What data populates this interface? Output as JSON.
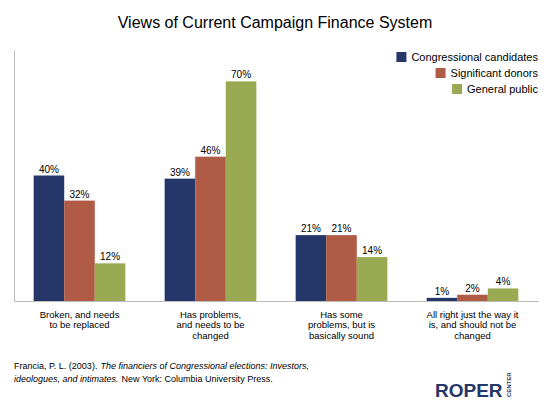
{
  "chart_data": {
    "type": "bar",
    "title": "Views of Current Campaign Finance System",
    "categories": [
      "Broken, and needs\nto be replaced",
      "Has problems,\nand needs to be\nchanged",
      "Has some\nproblems, but is\nbasically sound",
      "All right just the way it\nis, and should not be\nchanged"
    ],
    "series": [
      {
        "name": "Congressional candidates",
        "color": "#253669",
        "values": [
          40,
          39,
          21,
          1
        ],
        "value_labels": [
          "40%",
          "39%",
          "21%",
          "1%"
        ]
      },
      {
        "name": "Significant donors",
        "color": "#b05b45",
        "values": [
          32,
          46,
          21,
          2
        ],
        "value_labels": [
          "32%",
          "46%",
          "21%",
          "2%"
        ]
      },
      {
        "name": "General public",
        "color": "#9aaa52",
        "values": [
          12,
          70,
          14,
          4
        ],
        "value_labels": [
          "12%",
          "70%",
          "14%",
          "4%"
        ]
      }
    ],
    "ylim": [
      0,
      80
    ],
    "data_labels": true,
    "tick_labels": "x",
    "grid": false,
    "legend": "upper right",
    "annotations": [
      {
        "text": "Francia, P. L. (2003)."
      },
      {
        "text": "The financiers of Congressional elections: Investors,"
      },
      {
        "text": "ideologues, and intimates."
      },
      {
        "text": "New York: Columbia University Press."
      },
      {
        "text": "ROPER",
        "color": "#253669"
      },
      {
        "text": "CENTER",
        "color": "#253669"
      }
    ]
  }
}
